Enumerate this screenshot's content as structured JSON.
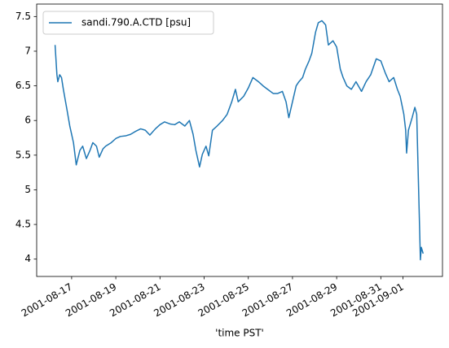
{
  "chart_data": {
    "type": "line",
    "xlabel": "'time PST'",
    "legend": "upper left",
    "grid": false,
    "xlim": [
      "2001-08-15T10:00",
      "2001-09-02T19:00"
    ],
    "xticks": [
      "2001-08-17",
      "2001-08-19",
      "2001-08-21",
      "2001-08-23",
      "2001-08-25",
      "2001-08-27",
      "2001-08-29",
      "2001-08-31",
      "2001-09-01"
    ],
    "ylim": [
      3.75,
      7.68
    ],
    "yticks": [
      4.0,
      4.5,
      5.0,
      5.5,
      6.0,
      6.5,
      7.0,
      7.5
    ],
    "x": [
      "2001-08-16T06:00",
      "2001-08-16T08:00",
      "2001-08-16T09:00",
      "2001-08-16T11:00",
      "2001-08-16T13:00",
      "2001-08-16T15:00",
      "2001-08-16T19:00",
      "2001-08-16T22:00",
      "2001-08-17T02:00",
      "2001-08-17T05:00",
      "2001-08-17T09:00",
      "2001-08-17T12:00",
      "2001-08-17T16:00",
      "2001-08-17T20:00",
      "2001-08-17T23:00",
      "2001-08-18T03:00",
      "2001-08-18T06:00",
      "2001-08-18T10:00",
      "2001-08-18T13:00",
      "2001-08-18T19:00",
      "2001-08-19T00:00",
      "2001-08-19T05:00",
      "2001-08-19T11:00",
      "2001-08-19T16:00",
      "2001-08-19T21:00",
      "2001-08-20T03:00",
      "2001-08-20T08:00",
      "2001-08-20T13:00",
      "2001-08-20T19:00",
      "2001-08-21T00:00",
      "2001-08-21T05:00",
      "2001-08-21T11:00",
      "2001-08-21T16:00",
      "2001-08-21T21:00",
      "2001-08-22T03:00",
      "2001-08-22T08:00",
      "2001-08-22T12:00",
      "2001-08-22T15:00",
      "2001-08-22T19:00",
      "2001-08-22T22:00",
      "2001-08-23T02:00",
      "2001-08-23T05:00",
      "2001-08-23T09:00",
      "2001-08-23T14:00",
      "2001-08-23T20:00",
      "2001-08-24T01:00",
      "2001-08-24T06:00",
      "2001-08-24T10:00",
      "2001-08-24T13:00",
      "2001-08-24T19:00",
      "2001-08-25T00:00",
      "2001-08-25T05:00",
      "2001-08-25T11:00",
      "2001-08-25T16:00",
      "2001-08-25T21:00",
      "2001-08-26T03:00",
      "2001-08-26T08:00",
      "2001-08-26T13:00",
      "2001-08-26T17:00",
      "2001-08-26T20:00",
      "2001-08-27T00:00",
      "2001-08-27T04:00",
      "2001-08-27T07:00",
      "2001-08-27T11:00",
      "2001-08-27T14:00",
      "2001-08-27T18:00",
      "2001-08-27T21:00",
      "2001-08-28T01:00",
      "2001-08-28T04:00",
      "2001-08-28T08:00",
      "2001-08-28T12:00",
      "2001-08-28T15:00",
      "2001-08-28T20:00",
      "2001-08-29T00:00",
      "2001-08-29T04:00",
      "2001-08-29T07:00",
      "2001-08-29T11:00",
      "2001-08-29T16:00",
      "2001-08-29T21:00",
      "2001-08-30T03:00",
      "2001-08-30T08:00",
      "2001-08-30T13:00",
      "2001-08-30T19:00",
      "2001-08-31T00:00",
      "2001-08-31T05:00",
      "2001-08-31T09:00",
      "2001-08-31T14:00",
      "2001-08-31T18:00",
      "2001-08-31T21:00",
      "2001-09-01T01:00",
      "2001-09-01T03:00",
      "2001-09-01T04:00",
      "2001-09-01T06:00",
      "2001-09-01T10:00",
      "2001-09-01T13:00",
      "2001-09-01T15:00",
      "2001-09-01T17:00",
      "2001-09-01T19:00",
      "2001-09-01T20:00",
      "2001-09-01T22:00"
    ],
    "series": [
      {
        "name": "sandi.790.A.CTD [psu]",
        "color": "#1f77b4",
        "values": [
          7.09,
          6.66,
          6.56,
          6.66,
          6.62,
          6.45,
          6.15,
          5.92,
          5.68,
          5.36,
          5.57,
          5.63,
          5.45,
          5.57,
          5.68,
          5.63,
          5.47,
          5.59,
          5.63,
          5.68,
          5.74,
          5.77,
          5.78,
          5.8,
          5.84,
          5.88,
          5.86,
          5.79,
          5.88,
          5.94,
          5.98,
          5.95,
          5.94,
          5.98,
          5.92,
          6.0,
          5.8,
          5.57,
          5.33,
          5.51,
          5.63,
          5.49,
          5.86,
          5.92,
          6.0,
          6.09,
          6.27,
          6.45,
          6.27,
          6.35,
          6.47,
          6.62,
          6.56,
          6.5,
          6.45,
          6.39,
          6.39,
          6.42,
          6.27,
          6.04,
          6.27,
          6.5,
          6.56,
          6.62,
          6.74,
          6.86,
          6.97,
          7.27,
          7.41,
          7.44,
          7.38,
          7.09,
          7.15,
          7.06,
          6.74,
          6.62,
          6.5,
          6.45,
          6.56,
          6.42,
          6.56,
          6.66,
          6.89,
          6.86,
          6.68,
          6.56,
          6.62,
          6.45,
          6.35,
          6.09,
          5.86,
          5.53,
          5.86,
          6.04,
          6.19,
          6.09,
          5.04,
          3.99,
          4.17,
          4.08
        ]
      }
    ]
  }
}
